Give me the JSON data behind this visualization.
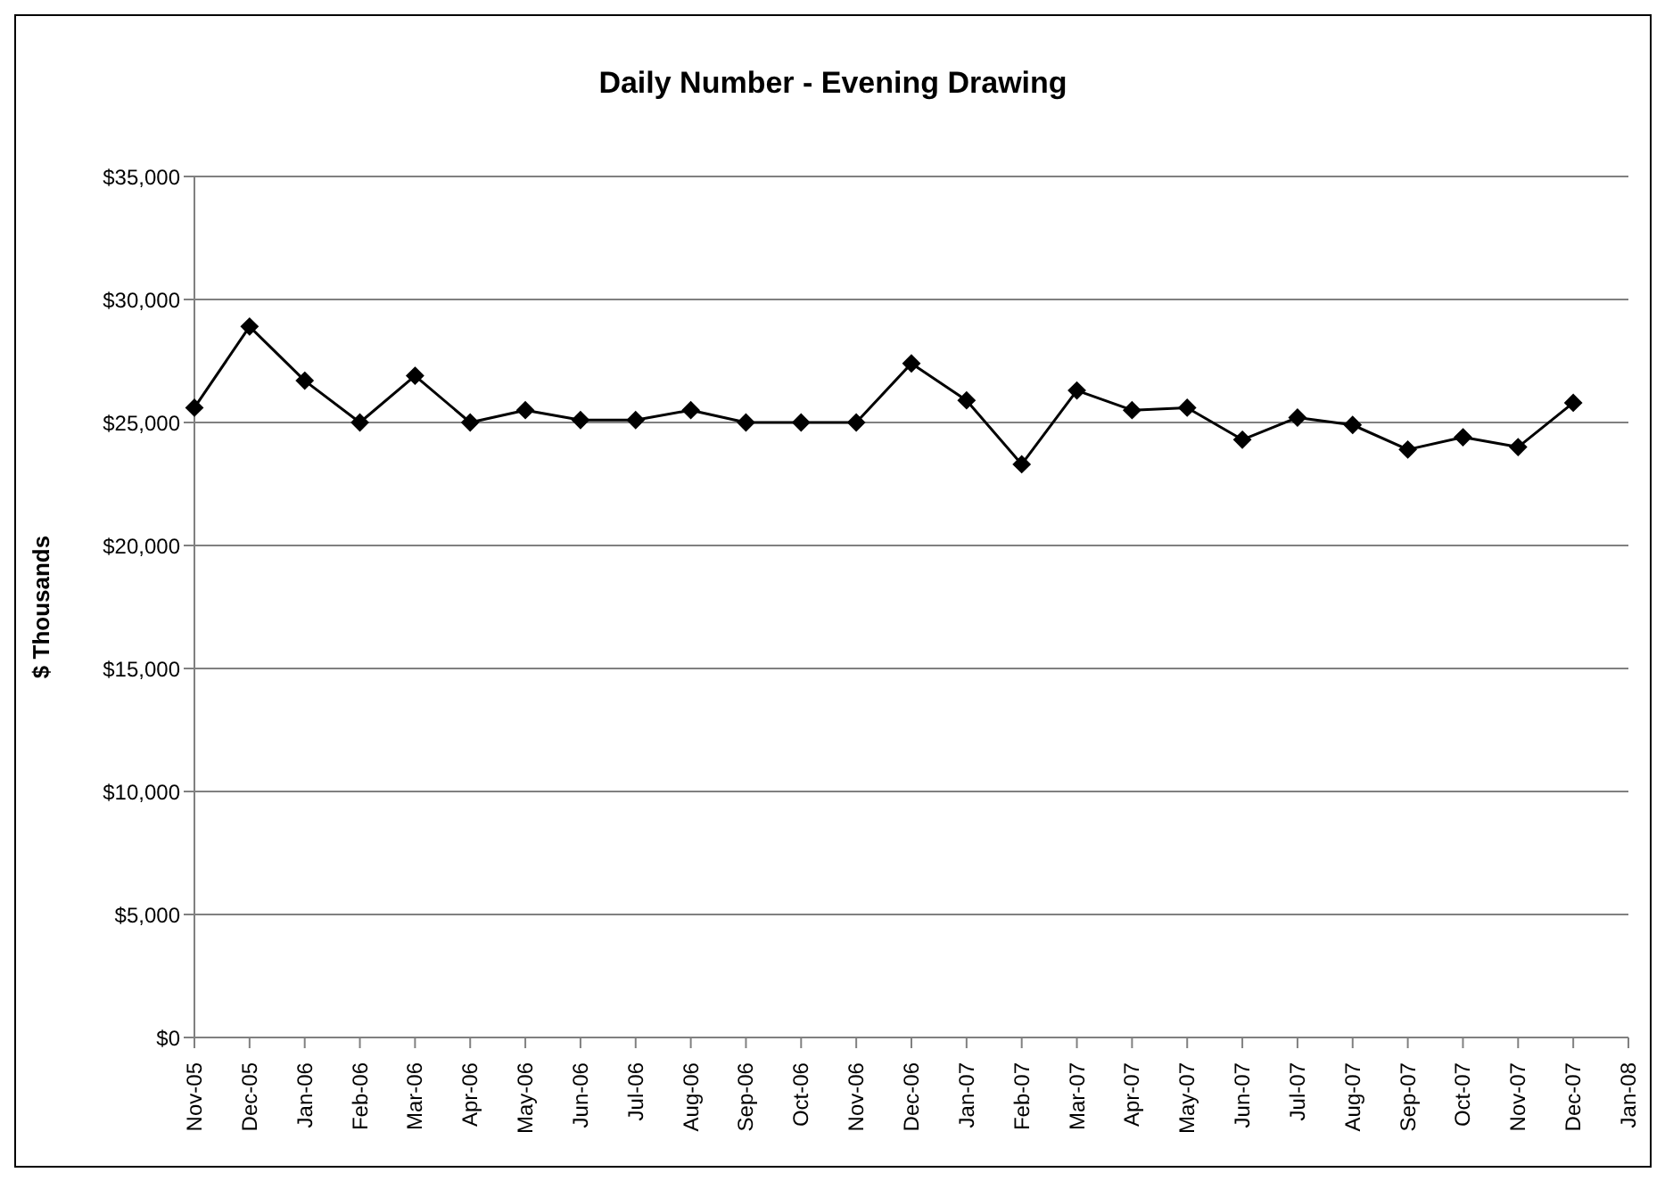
{
  "chart_data": {
    "type": "line",
    "title": "Daily Number - Evening Drawing",
    "ylabel": "$ Thousands",
    "categories": [
      "Nov-05",
      "Dec-05",
      "Jan-06",
      "Feb-06",
      "Mar-06",
      "Apr-06",
      "May-06",
      "Jun-06",
      "Jul-06",
      "Aug-06",
      "Sep-06",
      "Oct-06",
      "Nov-06",
      "Dec-06",
      "Jan-07",
      "Feb-07",
      "Mar-07",
      "Apr-07",
      "May-07",
      "Jun-07",
      "Jul-07",
      "Aug-07",
      "Sep-07",
      "Oct-07",
      "Nov-07",
      "Dec-07",
      "Jan-08"
    ],
    "series": [
      {
        "color": "#000000",
        "values": [
          25600,
          28900,
          26700,
          25000,
          26900,
          25000,
          25500,
          25100,
          25100,
          25500,
          25000,
          25000,
          25000,
          27400,
          25900,
          23300,
          26300,
          25500,
          25600,
          24300,
          25200,
          24900,
          23900,
          24400,
          24000,
          25800,
          null
        ]
      }
    ],
    "ylim": [
      0,
      35000
    ],
    "yticks": [
      {
        "value": 0,
        "label": "$0"
      },
      {
        "value": 5000,
        "label": "$5,000"
      },
      {
        "value": 10000,
        "label": "$10,000"
      },
      {
        "value": 15000,
        "label": "$15,000"
      },
      {
        "value": 20000,
        "label": "$20,000"
      },
      {
        "value": 25000,
        "label": "$25,000"
      },
      {
        "value": 30000,
        "label": "$30,000"
      },
      {
        "value": 35000,
        "label": "$35,000"
      }
    ],
    "grid": "y",
    "legend": false,
    "marker": "diamond",
    "line_style": "solid"
  }
}
